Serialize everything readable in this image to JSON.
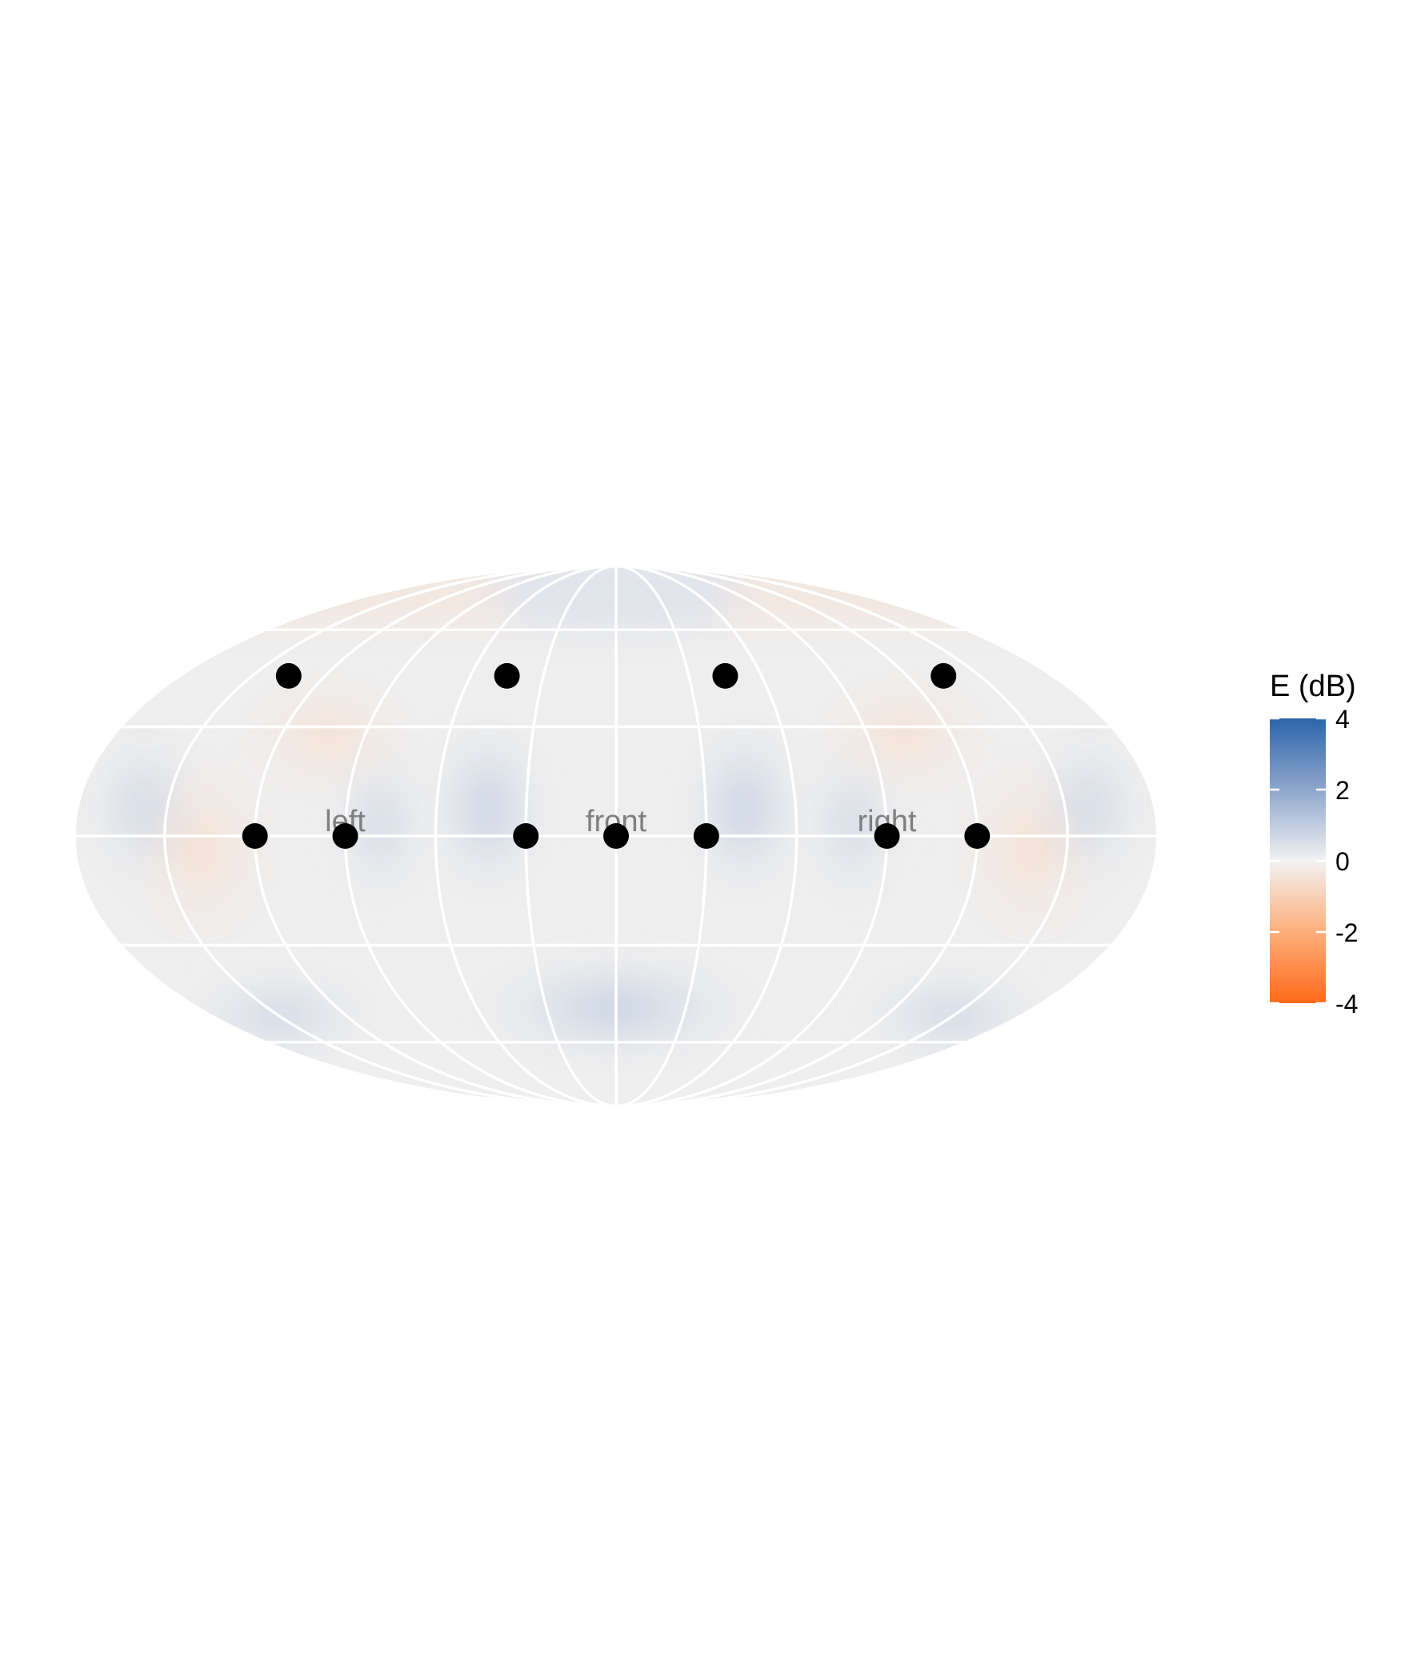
{
  "chart_data": {
    "type": "heatmap",
    "projection": "mollweide",
    "title": "",
    "xlabel": "",
    "ylabel": "",
    "region_labels": [
      {
        "text": "left",
        "azimuth": -90,
        "elevation": 0
      },
      {
        "text": "front",
        "azimuth": 0,
        "elevation": 0
      },
      {
        "text": "right",
        "azimuth": 90,
        "elevation": 0
      }
    ],
    "points": [
      {
        "azimuth": -135,
        "elevation": 45
      },
      {
        "azimuth": -45,
        "elevation": 45
      },
      {
        "azimuth": 45,
        "elevation": 45
      },
      {
        "azimuth": 135,
        "elevation": 45
      },
      {
        "azimuth": -120,
        "elevation": 0
      },
      {
        "azimuth": -90,
        "elevation": 0
      },
      {
        "azimuth": -30,
        "elevation": 0
      },
      {
        "azimuth": 0,
        "elevation": 0
      },
      {
        "azimuth": 30,
        "elevation": 0
      },
      {
        "azimuth": 90,
        "elevation": 0
      },
      {
        "azimuth": 120,
        "elevation": 0
      }
    ],
    "graticule": {
      "meridians_deg": [
        -180,
        -150,
        -120,
        -90,
        -60,
        -30,
        0,
        30,
        60,
        90,
        120,
        150,
        180
      ],
      "parallels_deg": [
        -60,
        -30,
        0,
        30,
        60
      ]
    },
    "colorbar": {
      "title": "E (dB)",
      "ticks": [
        4,
        2,
        0,
        -2,
        -4
      ],
      "range": [
        -4,
        4
      ],
      "colors": {
        "high": "#2b66ab",
        "mid": "#f2f2f2",
        "low": "#ff6a1a"
      }
    },
    "grid": true
  }
}
